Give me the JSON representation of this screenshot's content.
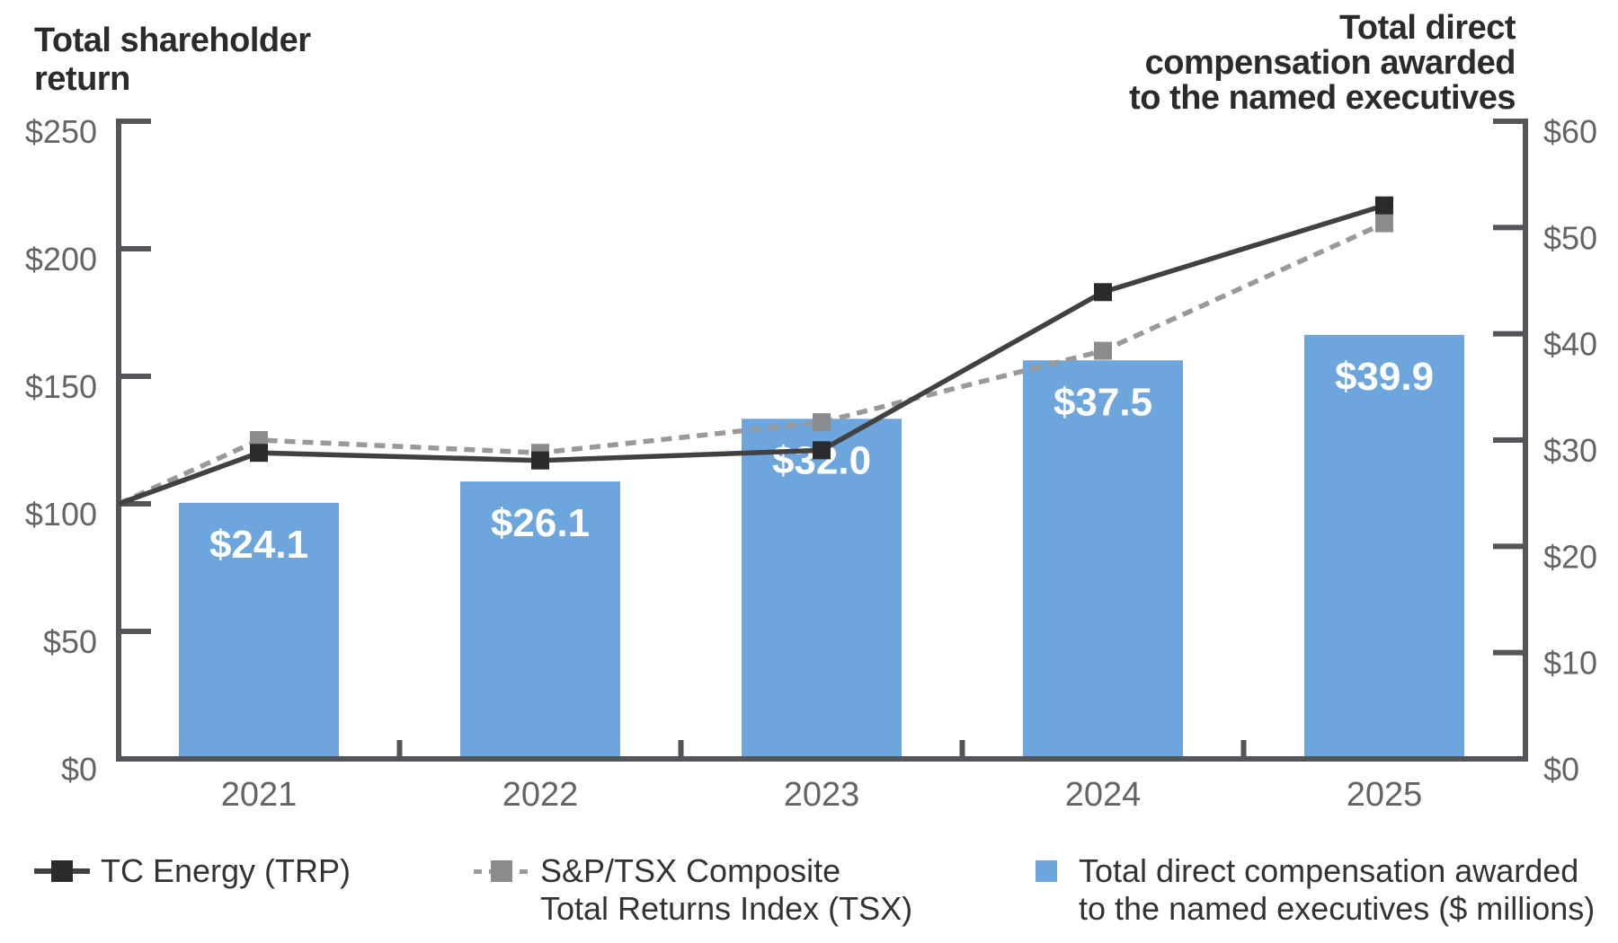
{
  "page": {
    "background": "#FFFFFF"
  },
  "titles": {
    "left": "Total shareholder\nreturn",
    "right": "Total direct\ncompensation awarded\nto the named executives"
  },
  "chart_data": {
    "type": "combo-bar-line",
    "categories": [
      "2021",
      "2022",
      "2023",
      "2024",
      "2025"
    ],
    "bar_series": {
      "name": "Total direct compensation awarded to the named executives ($ millions)",
      "axis": "right",
      "values": [
        24.1,
        26.1,
        32.0,
        37.5,
        39.9
      ],
      "labels": [
        "$24.1",
        "$26.1",
        "$32.0",
        "$37.5",
        "$39.9"
      ],
      "color": "#6CA6DC"
    },
    "line_series": [
      {
        "name": "S&P/TSX Composite Total Returns Index (TSX)",
        "axis": "left",
        "style": "dashed",
        "start_value": 100,
        "values": [
          125,
          120,
          132,
          160,
          210
        ],
        "line_color": "#98999B",
        "marker_color": "#8B8C8E"
      },
      {
        "name": "TC Energy (TRP)",
        "axis": "left",
        "style": "solid",
        "start_value": 100,
        "values": [
          120,
          117,
          121,
          183,
          217
        ],
        "line_color": "#414042",
        "marker_color": "#2B2B2D"
      }
    ],
    "left_axis": {
      "title": "Total shareholder return",
      "tick_labels": [
        "$250",
        "$200",
        "$150",
        "$100",
        "$50",
        "$0"
      ],
      "tick_values": [
        250,
        200,
        150,
        100,
        50,
        0
      ],
      "range": [
        0,
        250
      ]
    },
    "right_axis": {
      "title": "Total direct compensation awarded to the named executives",
      "tick_labels": [
        "$60",
        "$50",
        "$40",
        "$30",
        "$20",
        "$10",
        "$0"
      ],
      "tick_values": [
        60,
        50,
        40,
        30,
        20,
        10,
        0
      ],
      "range": [
        0,
        60
      ]
    },
    "grid": "off",
    "legend_position": "bottom"
  },
  "legend": {
    "items": [
      {
        "label": "TC Energy (TRP)",
        "marker": "solid-line-square",
        "color": "#2B2B2D"
      },
      {
        "label": "S&P/TSX Composite\nTotal Returns Index (TSX)",
        "marker": "dashed-line-square",
        "color": "#8B8C8E"
      },
      {
        "label": "Total direct compensation awarded\nto the named executives ($ millions)",
        "marker": "square",
        "color": "#6CA6DC"
      }
    ]
  },
  "colors": {
    "bar_blue": "#6CA6DC",
    "trp_dark": "#414042",
    "tsx_gray": "#98999B",
    "axis": "#545559",
    "tick_text": "#636466",
    "title_text": "#2B2B2D",
    "bar_label_text": "#FFFFFF"
  }
}
